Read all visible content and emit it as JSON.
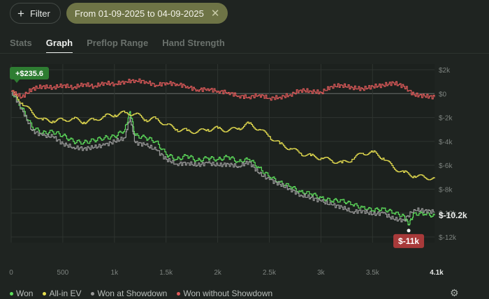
{
  "filter": {
    "label": "Filter"
  },
  "date_chip": {
    "label": "From 01-09-2025 to 04-09-2025",
    "close_icon": "close-icon"
  },
  "tabs": [
    {
      "label": "Stats",
      "active": false
    },
    {
      "label": "Graph",
      "active": true
    },
    {
      "label": "Preflop Range",
      "active": false
    },
    {
      "label": "Hand Strength",
      "active": false
    }
  ],
  "colors": {
    "won": "#5ee05c",
    "allin_ev": "#e8e050",
    "showdown": "#9a9a9a",
    "no_showdown": "#e05a5a",
    "badge_green": "#2e7d32",
    "badge_red": "#a83a3a"
  },
  "chart_data": {
    "type": "line",
    "x_ticks": [
      "0",
      "500",
      "1k",
      "1.5k",
      "2k",
      "2.5k",
      "3k",
      "3.5k",
      "4.1k"
    ],
    "y_ticks": [
      "$2k",
      "$0",
      "$-2k",
      "$-4k",
      "$-6k",
      "$-8k",
      "$-10k",
      "$-12k"
    ],
    "xlim": [
      0,
      4100
    ],
    "ylim": [
      -12000,
      2000
    ],
    "annotations": {
      "max_label": "+$235.6",
      "min_label": "$-11k",
      "end_label": "$-10.2k"
    },
    "series": [
      {
        "name": "Won",
        "color": "#5ee05c",
        "points": [
          [
            0,
            200
          ],
          [
            100,
            -1200
          ],
          [
            200,
            -2800
          ],
          [
            300,
            -3300
          ],
          [
            400,
            -3200
          ],
          [
            500,
            -3500
          ],
          [
            600,
            -4000
          ],
          [
            700,
            -4100
          ],
          [
            800,
            -3900
          ],
          [
            900,
            -3700
          ],
          [
            1000,
            -3600
          ],
          [
            1100,
            -3000
          ],
          [
            1150,
            -1500
          ],
          [
            1200,
            -3500
          ],
          [
            1300,
            -3700
          ],
          [
            1400,
            -4000
          ],
          [
            1500,
            -5100
          ],
          [
            1600,
            -5500
          ],
          [
            1700,
            -5200
          ],
          [
            1800,
            -5600
          ],
          [
            1900,
            -5400
          ],
          [
            2000,
            -5500
          ],
          [
            2100,
            -5300
          ],
          [
            2200,
            -5700
          ],
          [
            2300,
            -5500
          ],
          [
            2400,
            -6200
          ],
          [
            2500,
            -7000
          ],
          [
            2600,
            -7400
          ],
          [
            2700,
            -7800
          ],
          [
            2800,
            -8200
          ],
          [
            2900,
            -8400
          ],
          [
            3000,
            -8700
          ],
          [
            3100,
            -9000
          ],
          [
            3200,
            -8900
          ],
          [
            3300,
            -9300
          ],
          [
            3400,
            -9500
          ],
          [
            3500,
            -9800
          ],
          [
            3600,
            -9600
          ],
          [
            3700,
            -10000
          ],
          [
            3800,
            -10200
          ],
          [
            3850,
            -11000
          ],
          [
            3900,
            -10000
          ],
          [
            4000,
            -10100
          ],
          [
            4100,
            -10200
          ]
        ]
      },
      {
        "name": "All-in EV",
        "color": "#e8e050",
        "points": [
          [
            0,
            200
          ],
          [
            100,
            -800
          ],
          [
            200,
            -1600
          ],
          [
            300,
            -2200
          ],
          [
            400,
            -2300
          ],
          [
            500,
            -2200
          ],
          [
            600,
            -2100
          ],
          [
            700,
            -2400
          ],
          [
            800,
            -2200
          ],
          [
            900,
            -1900
          ],
          [
            1000,
            -1800
          ],
          [
            1100,
            -1600
          ],
          [
            1200,
            -1700
          ],
          [
            1300,
            -2200
          ],
          [
            1400,
            -2100
          ],
          [
            1500,
            -2600
          ],
          [
            1600,
            -3000
          ],
          [
            1700,
            -3100
          ],
          [
            1800,
            -3200
          ],
          [
            1900,
            -3000
          ],
          [
            2000,
            -2900
          ],
          [
            2100,
            -3100
          ],
          [
            2200,
            -2900
          ],
          [
            2300,
            -2500
          ],
          [
            2400,
            -3000
          ],
          [
            2500,
            -3600
          ],
          [
            2600,
            -4200
          ],
          [
            2700,
            -4600
          ],
          [
            2800,
            -5000
          ],
          [
            2900,
            -5200
          ],
          [
            3000,
            -5400
          ],
          [
            3100,
            -5600
          ],
          [
            3200,
            -5800
          ],
          [
            3300,
            -5500
          ],
          [
            3400,
            -5000
          ],
          [
            3500,
            -4900
          ],
          [
            3600,
            -5400
          ],
          [
            3700,
            -6200
          ],
          [
            3800,
            -6600
          ],
          [
            3900,
            -6900
          ],
          [
            4000,
            -7000
          ],
          [
            4100,
            -7100
          ]
        ]
      },
      {
        "name": "Won at Showdown",
        "color": "#9a9a9a",
        "points": [
          [
            0,
            200
          ],
          [
            100,
            -1300
          ],
          [
            200,
            -3100
          ],
          [
            300,
            -3500
          ],
          [
            400,
            -3600
          ],
          [
            500,
            -4200
          ],
          [
            600,
            -4500
          ],
          [
            700,
            -4600
          ],
          [
            800,
            -4500
          ],
          [
            900,
            -4300
          ],
          [
            1000,
            -4000
          ],
          [
            1100,
            -3700
          ],
          [
            1150,
            -2000
          ],
          [
            1200,
            -4100
          ],
          [
            1300,
            -4300
          ],
          [
            1400,
            -4700
          ],
          [
            1500,
            -5500
          ],
          [
            1600,
            -5900
          ],
          [
            1700,
            -5800
          ],
          [
            1800,
            -6000
          ],
          [
            1900,
            -5800
          ],
          [
            2000,
            -6000
          ],
          [
            2100,
            -5900
          ],
          [
            2200,
            -6100
          ],
          [
            2300,
            -5700
          ],
          [
            2400,
            -6700
          ],
          [
            2500,
            -7200
          ],
          [
            2600,
            -7600
          ],
          [
            2700,
            -8000
          ],
          [
            2800,
            -8500
          ],
          [
            2900,
            -8700
          ],
          [
            3000,
            -9000
          ],
          [
            3100,
            -9300
          ],
          [
            3200,
            -9500
          ],
          [
            3300,
            -9900
          ],
          [
            3400,
            -9800
          ],
          [
            3500,
            -10100
          ],
          [
            3600,
            -10000
          ],
          [
            3700,
            -10500
          ],
          [
            3800,
            -10600
          ],
          [
            3900,
            -9700
          ],
          [
            4000,
            -9800
          ],
          [
            4100,
            -9900
          ]
        ]
      },
      {
        "name": "Won without Showdown",
        "color": "#e05a5a",
        "points": [
          [
            0,
            200
          ],
          [
            100,
            -300
          ],
          [
            200,
            400
          ],
          [
            300,
            600
          ],
          [
            400,
            500
          ],
          [
            500,
            700
          ],
          [
            600,
            500
          ],
          [
            700,
            800
          ],
          [
            800,
            600
          ],
          [
            900,
            900
          ],
          [
            1000,
            800
          ],
          [
            1100,
            1000
          ],
          [
            1200,
            1100
          ],
          [
            1300,
            1000
          ],
          [
            1400,
            700
          ],
          [
            1500,
            900
          ],
          [
            1600,
            800
          ],
          [
            1700,
            600
          ],
          [
            1800,
            300
          ],
          [
            1900,
            400
          ],
          [
            2000,
            200
          ],
          [
            2100,
            100
          ],
          [
            2200,
            -200
          ],
          [
            2300,
            -300
          ],
          [
            2400,
            -100
          ],
          [
            2500,
            -400
          ],
          [
            2600,
            -300
          ],
          [
            2700,
            -100
          ],
          [
            2800,
            300
          ],
          [
            2900,
            200
          ],
          [
            3000,
            100
          ],
          [
            3100,
            600
          ],
          [
            3200,
            700
          ],
          [
            3300,
            500
          ],
          [
            3400,
            400
          ],
          [
            3500,
            600
          ],
          [
            3600,
            700
          ],
          [
            3700,
            900
          ],
          [
            3800,
            600
          ],
          [
            3900,
            -100
          ],
          [
            4000,
            -200
          ],
          [
            4100,
            -300
          ]
        ]
      }
    ]
  }
}
